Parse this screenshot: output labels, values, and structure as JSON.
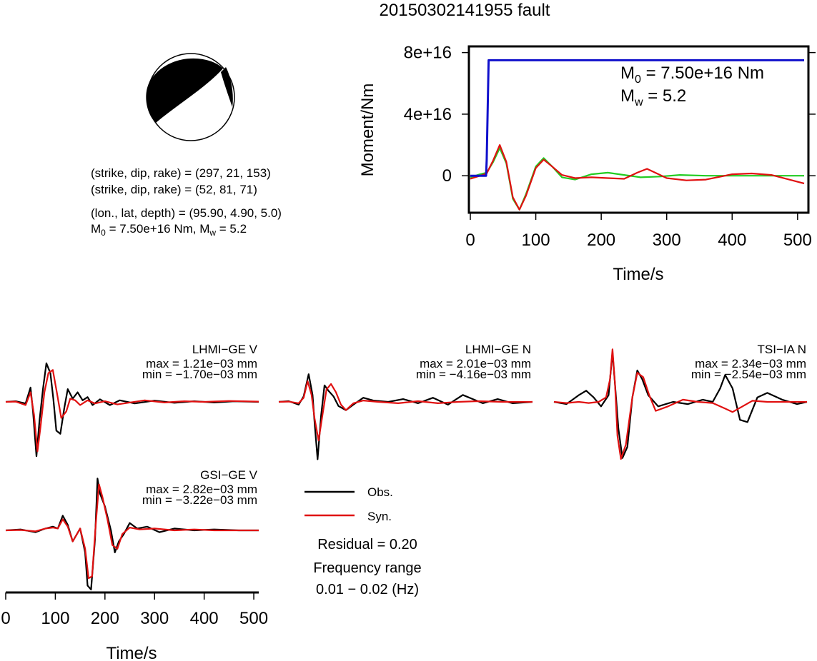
{
  "title": "20150302141955 fault",
  "colors": {
    "obs": "#000000",
    "syn": "#e01010",
    "moment": "#1010cc",
    "green": "#22cc22",
    "axis": "#000000"
  },
  "mechanism": {
    "plane1": "(strike, dip, rake) = (297, 21, 153)",
    "plane2": "(strike, dip, rake) = (52, 81, 71)",
    "location": "(lon., lat, depth) = (95.90, 4.90, 5.0)",
    "moment_pre": "M",
    "moment_sub": "0",
    "moment_mid": " = 7.50e+16 Nm, M",
    "moment_sub2": "w",
    "moment_post": " = 5.2"
  },
  "moment_panel": {
    "m0_main": "M",
    "m0_sub": "0",
    "m0_text": " = 7.50e+16 Nm",
    "mw_main": "M",
    "mw_sub": "w",
    "mw_text": " = 5.2"
  },
  "legend": {
    "obs_label": "Obs.",
    "syn_label": "Syn.",
    "residual": "Residual = 0.20",
    "freq_label": "Frequency range",
    "freq_value": "0.01 − 0.02 (Hz)"
  },
  "chart_data": [
    {
      "type": "line",
      "id": "moment",
      "xlabel": "Time/s",
      "ylabel": "Moment/Nm",
      "xlim": [
        0,
        510
      ],
      "ylim": [
        -2.4e+16,
        8.4e+16
      ],
      "xticks": [
        0,
        100,
        200,
        300,
        400,
        500
      ],
      "xtick_labels": [
        "0",
        "100",
        "200",
        "300",
        "400",
        "500"
      ],
      "yticks": [
        0,
        4e+16,
        8e+16
      ],
      "ytick_labels": [
        "0",
        "4e+16",
        "8e+16"
      ],
      "series": [
        {
          "color": "#1010cc",
          "x": [
            0,
            24,
            25,
            28,
            510
          ],
          "y": [
            0,
            0,
            1e+16,
            7.5e+16,
            7.5e+16
          ]
        },
        {
          "color": "#22cc22",
          "x": [
            0,
            15,
            25,
            35,
            45,
            55,
            65,
            75,
            85,
            100,
            112,
            125,
            140,
            160,
            185,
            210,
            235,
            260,
            290,
            320,
            360,
            400,
            450,
            510
          ],
          "y": [
            -1000000000000000.0,
            1000000000000000.0,
            2000000000000000.0,
            9000000000000000.0,
            1.8e+16,
            8000000000000000.0,
            -1.5e+16,
            -2.2e+16,
            -1.2e+16,
            6000000000000000.0,
            1.15e+16,
            6000000000000000.0,
            -1000000000000000.0,
            -2500000000000000.0,
            1000000000000000.0,
            2000000000000000.0,
            500000000000000.0,
            -1000000000000000.0,
            -500000000000000.0,
            500000000000000.0,
            0.0,
            0.0,
            0.0,
            0.0
          ]
        },
        {
          "color": "#e01010",
          "x": [
            0,
            15,
            25,
            35,
            45,
            55,
            65,
            75,
            85,
            100,
            112,
            125,
            140,
            160,
            185,
            210,
            235,
            255,
            270,
            285,
            300,
            330,
            360,
            400,
            430,
            460,
            510
          ],
          "y": [
            -2000000000000000.0,
            0.0,
            1500000000000000.0,
            1e+16,
            2e+16,
            9000000000000000.0,
            -1.4e+16,
            -2.2e+16,
            -1.3e+16,
            5000000000000000.0,
            1.05e+16,
            6000000000000000.0,
            500000000000000.0,
            -1500000000000000.0,
            -1000000000000000.0,
            -1500000000000000.0,
            -2000000000000000.0,
            2000000000000000.0,
            4500000000000000.0,
            1500000000000000.0,
            -1500000000000000.0,
            -3000000000000000.0,
            -2500000000000000.0,
            1000000000000000.0,
            1500000000000000.0,
            500000000000000.0,
            -5000000000000000.0
          ]
        }
      ]
    },
    {
      "type": "line",
      "id": "lhmi-v",
      "name": "LHMI−GE V",
      "max_label": "max = 1.21e−03 mm",
      "min_label": "min = −1.70e−03 mm",
      "xlim": [
        0,
        510
      ],
      "ylim": [
        -1.9,
        1.6
      ],
      "series": [
        {
          "name": "Obs.",
          "color": "#000000",
          "x": [
            0,
            20,
            40,
            50,
            55,
            62,
            68,
            75,
            82,
            90,
            96,
            102,
            110,
            118,
            125,
            135,
            145,
            155,
            165,
            175,
            190,
            210,
            230,
            260,
            300,
            340,
            380,
            420,
            460,
            510
          ],
          "y": [
            0.0,
            0.02,
            -0.05,
            0.45,
            -0.3,
            -1.7,
            -0.6,
            0.4,
            1.21,
            0.9,
            0.1,
            -0.9,
            -1.0,
            -0.2,
            0.4,
            0.1,
            0.3,
            0.05,
            0.15,
            -0.1,
            0.08,
            -0.1,
            0.05,
            -0.05,
            0.04,
            -0.03,
            0.02,
            -0.02,
            0.02,
            0.0
          ]
        },
        {
          "name": "Syn.",
          "color": "#e01010",
          "x": [
            0,
            20,
            40,
            50,
            57,
            64,
            70,
            78,
            86,
            95,
            103,
            112,
            122,
            130,
            140,
            150,
            165,
            180,
            200,
            225,
            250,
            280,
            320,
            360,
            400,
            450,
            510
          ],
          "y": [
            0.0,
            0.01,
            -0.1,
            0.3,
            -0.4,
            -1.55,
            -0.8,
            0.3,
            0.9,
            1.0,
            0.3,
            -0.5,
            -0.3,
            0.1,
            0.05,
            -0.1,
            0.05,
            -0.05,
            0.02,
            -0.08,
            -0.02,
            0.05,
            -0.02,
            0.02,
            0.0,
            0.03,
            0.01
          ]
        }
      ]
    },
    {
      "type": "line",
      "id": "lhmi-n",
      "name": "LHMI−GE N",
      "max_label": "max = 2.01e−03 mm",
      "min_label": "min = −4.16e−03 mm",
      "xlim": [
        0,
        510
      ],
      "ylim": [
        -4.4,
        2.2
      ],
      "series": [
        {
          "name": "Obs.",
          "color": "#000000",
          "x": [
            0,
            20,
            40,
            50,
            60,
            68,
            72,
            78,
            85,
            92,
            100,
            110,
            120,
            135,
            150,
            170,
            190,
            220,
            250,
            280,
            310,
            340,
            370,
            390,
            410,
            440,
            470,
            510
          ],
          "y": [
            0.0,
            0.05,
            -0.2,
            0.4,
            2.01,
            0.5,
            -1.5,
            -4.16,
            -1.0,
            1.2,
            0.8,
            0.4,
            -0.3,
            -0.6,
            -0.2,
            0.3,
            0.1,
            0.0,
            0.2,
            -0.1,
            0.3,
            -0.2,
            0.5,
            0.2,
            -0.1,
            0.2,
            -0.1,
            0.0
          ]
        },
        {
          "name": "Syn.",
          "color": "#e01010",
          "x": [
            0,
            20,
            40,
            50,
            58,
            66,
            72,
            80,
            88,
            96,
            105,
            115,
            125,
            135,
            150,
            170,
            200,
            240,
            280,
            320,
            360,
            400,
            450,
            510
          ],
          "y": [
            0.0,
            0.02,
            -0.1,
            0.3,
            1.5,
            0.5,
            -1.2,
            -2.8,
            -0.9,
            0.9,
            1.3,
            0.7,
            -0.2,
            -0.6,
            -0.1,
            0.1,
            0.0,
            -0.1,
            0.05,
            -0.1,
            0.0,
            0.05,
            0.0,
            0.0
          ]
        }
      ]
    },
    {
      "type": "line",
      "id": "tsi-n",
      "name": "TSI−IA N",
      "max_label": "max = 2.34e−03 mm",
      "min_label": "min = −2.54e−03 mm",
      "xlim": [
        0,
        510
      ],
      "ylim": [
        -2.7,
        2.5
      ],
      "series": [
        {
          "name": "Obs.",
          "color": "#000000",
          "x": [
            0,
            25,
            50,
            65,
            80,
            95,
            110,
            118,
            124,
            130,
            138,
            148,
            158,
            168,
            178,
            190,
            210,
            240,
            270,
            300,
            320,
            335,
            345,
            360,
            375,
            390,
            410,
            430,
            460,
            490,
            510
          ],
          "y": [
            0.0,
            -0.1,
            0.3,
            0.5,
            0.2,
            -0.2,
            0.3,
            2.2,
            0.5,
            -1.2,
            -2.5,
            -2.0,
            0.2,
            1.4,
            1.0,
            0.3,
            -0.2,
            0.0,
            -0.1,
            0.1,
            0.0,
            0.6,
            1.2,
            0.6,
            -0.8,
            -0.9,
            0.2,
            0.4,
            0.1,
            -0.1,
            0.0
          ]
        },
        {
          "name": "Syn.",
          "color": "#e01010",
          "x": [
            0,
            25,
            50,
            70,
            90,
            105,
            113,
            118,
            123,
            128,
            135,
            145,
            158,
            168,
            180,
            192,
            205,
            230,
            260,
            290,
            320,
            345,
            360,
            380,
            400,
            430,
            460,
            510
          ],
          "y": [
            0.0,
            -0.05,
            0.0,
            -0.05,
            0.0,
            0.2,
            1.0,
            2.34,
            0.8,
            -1.5,
            -2.54,
            -1.9,
            0.2,
            1.3,
            1.1,
            0.3,
            -0.4,
            -0.2,
            0.1,
            0.0,
            -0.05,
            -0.3,
            -0.45,
            -0.2,
            0.05,
            0.0,
            0.0,
            0.0
          ]
        }
      ]
    },
    {
      "type": "line",
      "id": "gsi-v",
      "name": "GSI−GE V",
      "max_label": "max = 2.82e−03 mm",
      "min_label": "min = −3.22e−03 mm",
      "xlabel": "Time/s",
      "xlim": [
        0,
        510
      ],
      "ylim": [
        -3.3,
        2.9
      ],
      "xticks": [
        0,
        100,
        200,
        300,
        400,
        500
      ],
      "xtick_labels": [
        "0",
        "100",
        "200",
        "300",
        "400",
        "500"
      ],
      "series": [
        {
          "name": "Obs.",
          "color": "#000000",
          "x": [
            0,
            30,
            60,
            80,
            95,
            105,
            115,
            125,
            135,
            150,
            160,
            165,
            172,
            180,
            185,
            190,
            200,
            212,
            220,
            228,
            238,
            250,
            265,
            285,
            310,
            340,
            380,
            420,
            470,
            510
          ],
          "y": [
            0.0,
            0.05,
            -0.1,
            0.1,
            0.2,
            0.1,
            0.8,
            0.3,
            -0.6,
            0.1,
            -1.2,
            -3.0,
            -3.22,
            -0.5,
            2.82,
            2.0,
            1.3,
            0.0,
            -1.2,
            -0.6,
            -0.2,
            0.4,
            0.1,
            0.2,
            -0.1,
            0.1,
            0.0,
            0.05,
            0.0,
            0.0
          ]
        },
        {
          "name": "Syn.",
          "color": "#e01010",
          "x": [
            0,
            30,
            60,
            80,
            95,
            105,
            115,
            125,
            135,
            150,
            160,
            167,
            174,
            182,
            188,
            195,
            205,
            215,
            225,
            235,
            250,
            270,
            300,
            340,
            380,
            420,
            470,
            510
          ],
          "y": [
            0.0,
            0.02,
            -0.05,
            0.1,
            0.15,
            0.1,
            0.6,
            0.2,
            -0.6,
            0.1,
            -1.0,
            -2.6,
            -2.5,
            0.5,
            2.5,
            1.8,
            0.6,
            -0.8,
            -1.0,
            -0.2,
            0.15,
            0.05,
            0.1,
            0.0,
            0.05,
            0.0,
            0.0,
            0.0
          ]
        }
      ]
    }
  ]
}
